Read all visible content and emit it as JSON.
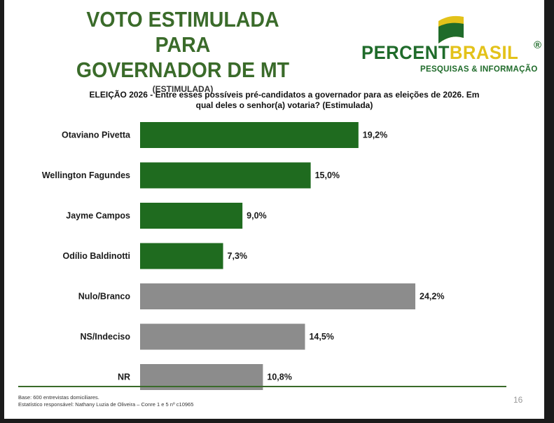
{
  "title": {
    "line1": "VOTO ESTIMULADA PARA",
    "line2": "GOVERNADOR DE MT",
    "subtitle": "(ESTIMULADA)"
  },
  "logo": {
    "part1": "PERCENT",
    "part2": "BRASIL",
    "registered": "®",
    "tagline": "PESQUISAS & INFORMAÇÃO"
  },
  "question": {
    "line1": "ELEIÇÃO 2026 - Entre esses possíveis pré-candidatos a governador para as eleições de 2026. Em",
    "line2": "qual deles o senhor(a) votaria? (Estimulada)"
  },
  "chart_data": {
    "type": "bar",
    "orientation": "horizontal",
    "categories": [
      "Otaviano Pivetta",
      "Wellington Fagundes",
      "Jayme Campos",
      "Odílio Baldinotti",
      "Nulo/Branco",
      "NS/Indeciso",
      "NR"
    ],
    "values": [
      19.2,
      15.0,
      9.0,
      7.3,
      24.2,
      14.5,
      10.8
    ],
    "labels": [
      "19,2%",
      "15,0%",
      "9,0%",
      "7,3%",
      "24,2%",
      "14,5%",
      "10,8%"
    ],
    "colors": [
      "#1f6b1f",
      "#1f6b1f",
      "#1f6b1f",
      "#1f6b1f",
      "#8c8c8c",
      "#8c8c8c",
      "#8c8c8c"
    ],
    "xlim": [
      0,
      24.2
    ],
    "grid": false,
    "legend": "none"
  },
  "footer": {
    "base": "Base: 600 entrevistas domiciliares.",
    "statistician": "Estatístico responsável: Nathany Luzia de Oliveira – Conre 1 e 5 nº c10965",
    "page": "16"
  }
}
